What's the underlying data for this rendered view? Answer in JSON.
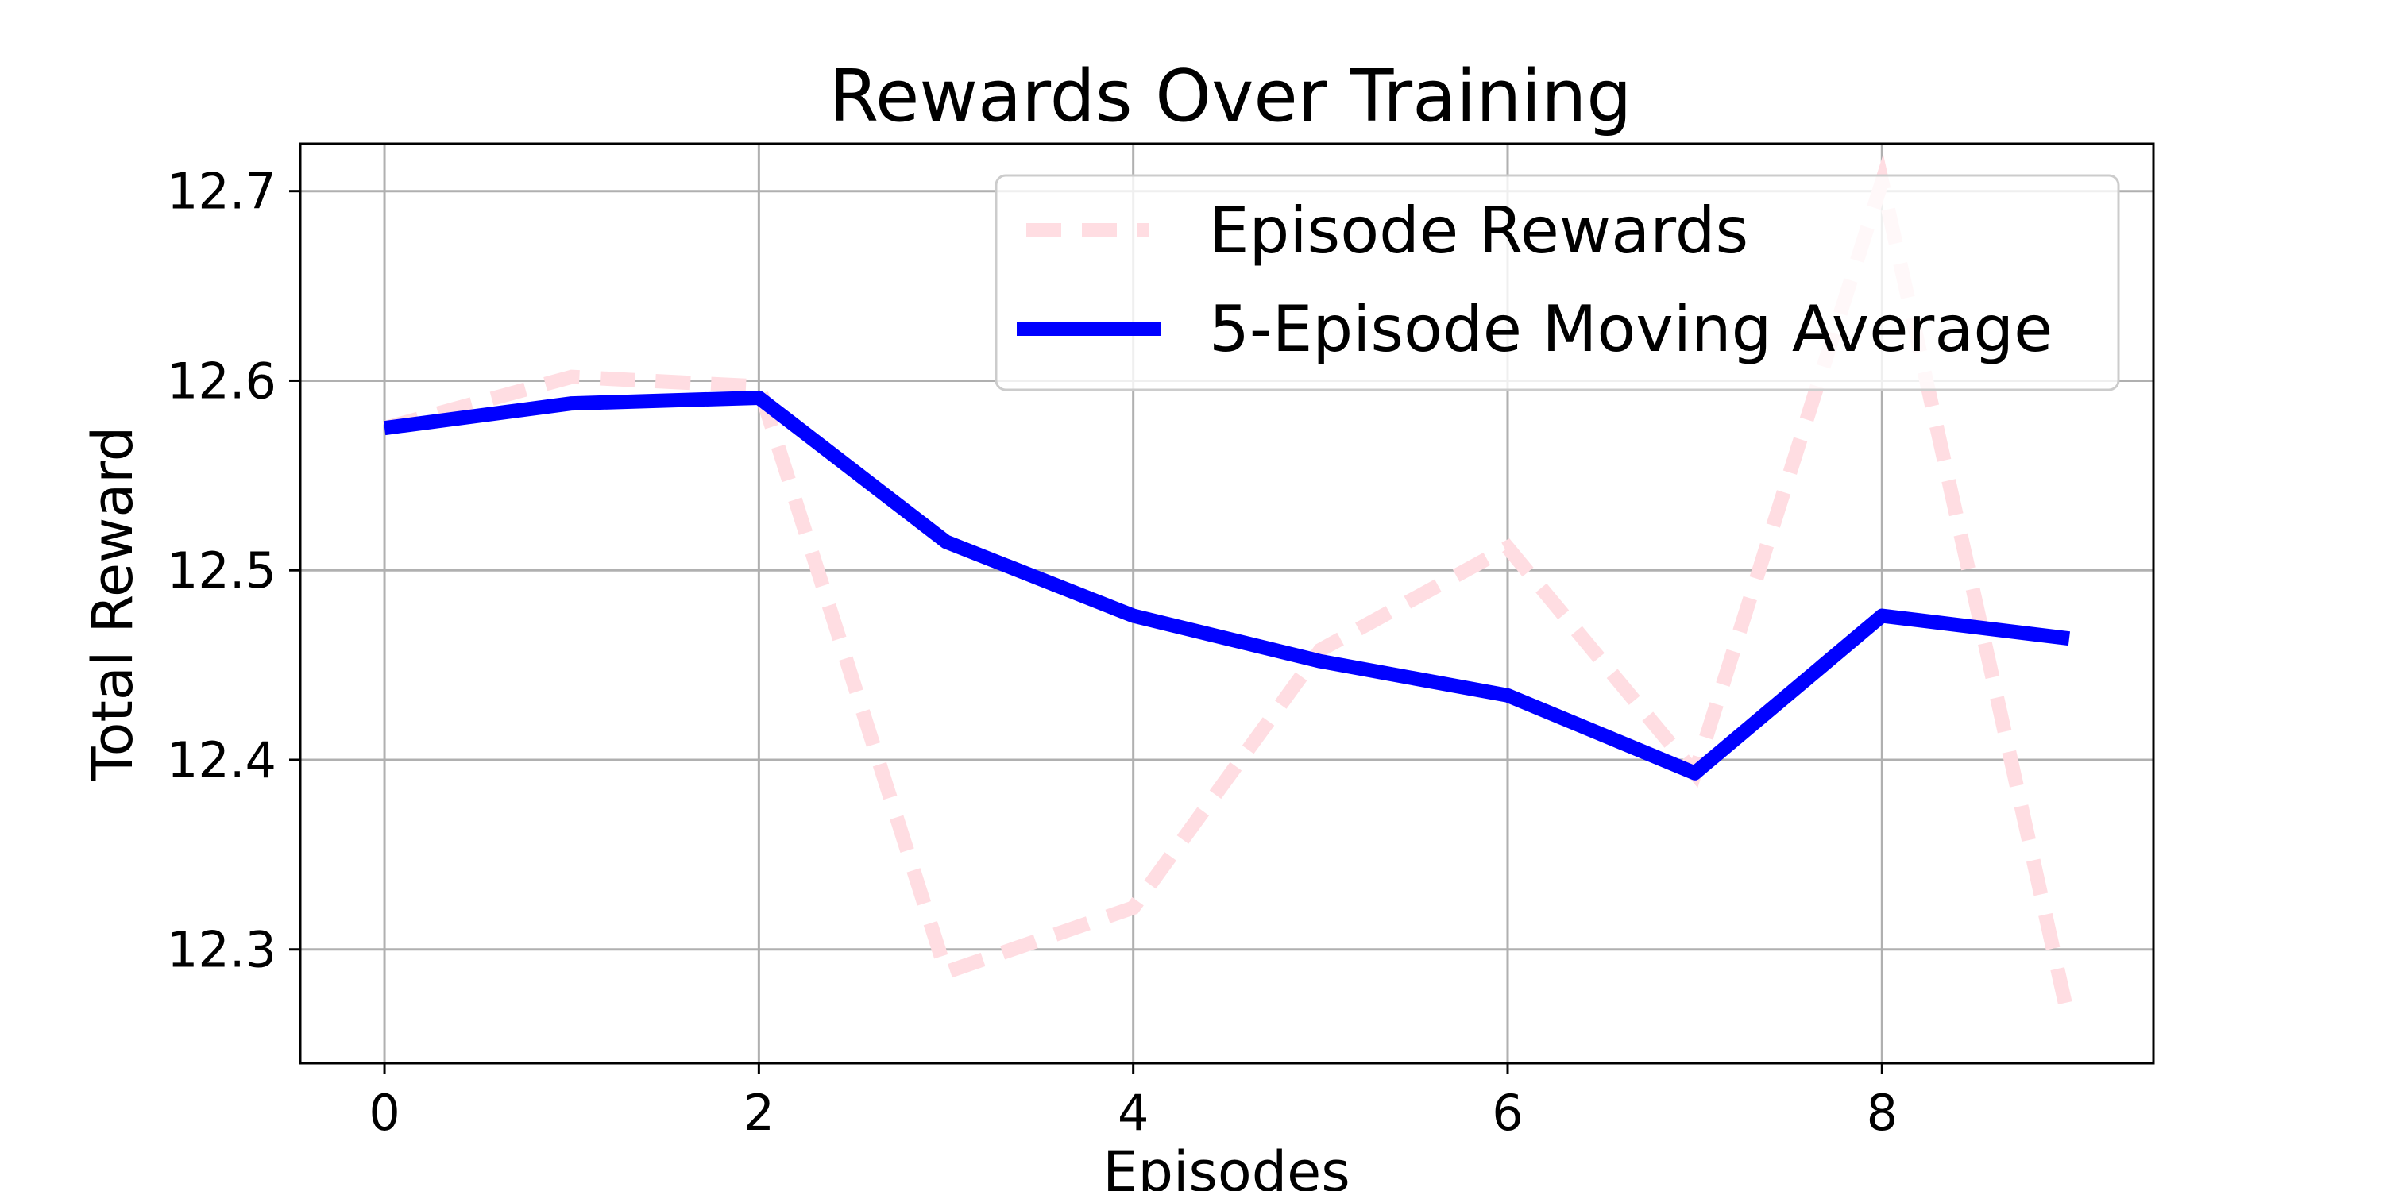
{
  "chart_data": {
    "type": "line",
    "title": "Rewards Over Training",
    "xlabel": "Episodes",
    "ylabel": "Total Reward",
    "x": [
      0,
      1,
      2,
      3,
      4,
      5,
      6,
      7,
      8,
      9
    ],
    "xlim": [
      -0.45,
      9.45
    ],
    "ylim": [
      12.24,
      12.725
    ],
    "xticks": [
      0,
      2,
      4,
      6,
      8
    ],
    "yticks": [
      12.3,
      12.4,
      12.5,
      12.6,
      12.7
    ],
    "grid": true,
    "legend_position": "top-right",
    "series": [
      {
        "name": "Episode Rewards",
        "style": "dashed",
        "color": "#ffdde2",
        "values": [
          12.575,
          12.602,
          12.597,
          12.288,
          12.322,
          12.458,
          12.512,
          12.393,
          12.705,
          12.262
        ]
      },
      {
        "name": "5-Episode Moving Average",
        "style": "solid",
        "color": "#0000ff",
        "values": [
          12.575,
          12.588,
          12.591,
          12.515,
          12.476,
          12.452,
          12.434,
          12.393,
          12.476,
          12.464
        ]
      }
    ]
  }
}
